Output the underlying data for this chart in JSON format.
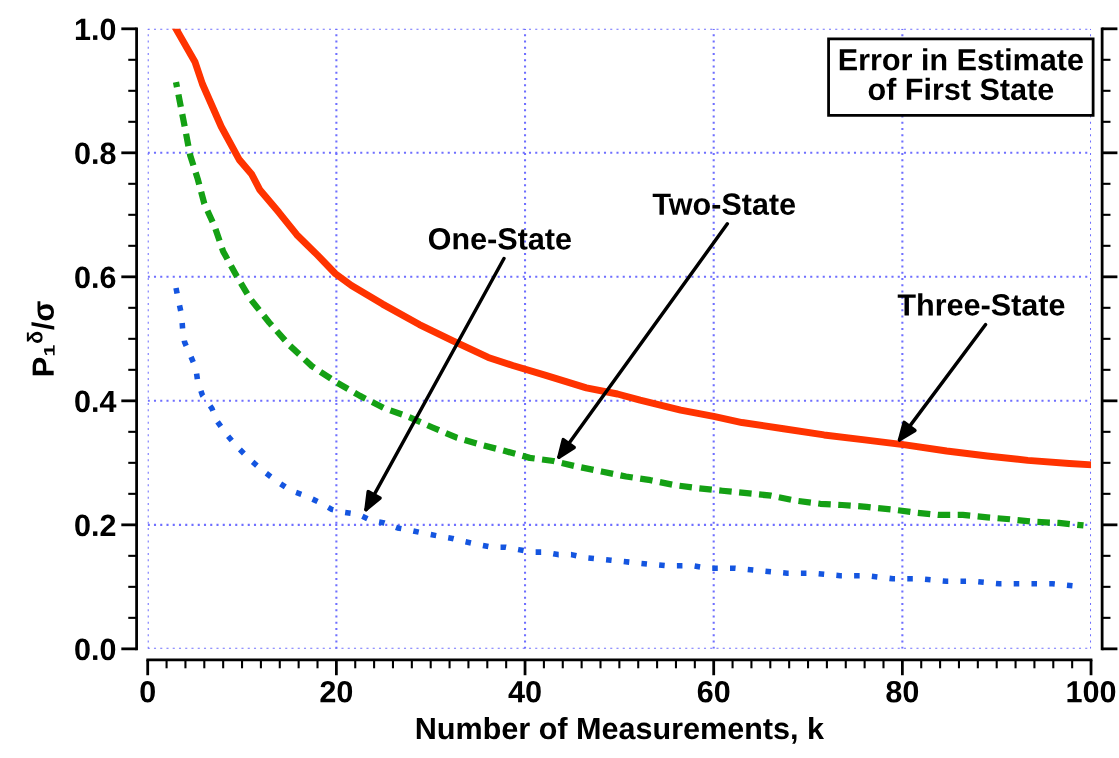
{
  "chart_data": {
    "type": "line",
    "title": "Error in Estimate\nof First State",
    "xlabel": "Number of Measurements, k",
    "ylabel": "P₁$^{δ}$/σ",
    "xlim": [
      0,
      100
    ],
    "ylim": [
      0,
      1.0
    ],
    "xticks": [
      0,
      20,
      40,
      60,
      80,
      100
    ],
    "yticks": [
      {
        "value": 0,
        "label": "0.0"
      },
      0.2,
      0.4,
      0.6,
      0.8,
      {
        "value": 1.0,
        "label": "1.0"
      }
    ],
    "grid": true,
    "marker": "none",
    "series": [
      {
        "color": "#ff3300",
        "line_style": "solid",
        "x": [
          3.0,
          5.0,
          5.8,
          7.8,
          9.7,
          11.0,
          11.9,
          13.9,
          15.8,
          18.0,
          19.9,
          21.6,
          24.9,
          28.8,
          32.3,
          36.1,
          38.7,
          42.2,
          46.5,
          49.8,
          52.2,
          56.5,
          60.0,
          63.0,
          67.4,
          71.7,
          76.0,
          80.3,
          84.7,
          89.0,
          93.3,
          97.7,
          99.8
        ],
        "values": [
          1.0,
          0.947,
          0.911,
          0.842,
          0.789,
          0.766,
          0.74,
          0.704,
          0.668,
          0.635,
          0.605,
          0.586,
          0.556,
          0.523,
          0.497,
          0.47,
          0.457,
          0.441,
          0.421,
          0.411,
          0.401,
          0.385,
          0.375,
          0.365,
          0.355,
          0.345,
          0.337,
          0.329,
          0.319,
          0.311,
          0.304,
          0.299,
          0.297
        ]
      },
      {
        "color": "#14a014",
        "line_style": "dashed",
        "x": [
          3.0,
          3.5,
          4.0,
          4.5,
          5.3,
          6.0,
          7.1,
          8.0,
          9.4,
          10.9,
          12.9,
          15.0,
          17.4,
          20.0,
          22.5,
          25.1,
          27.5,
          30.2,
          32.7,
          35.4,
          37.9,
          40.5,
          43.0,
          45.5,
          48.1,
          50.7,
          53.3,
          55.9,
          58.4,
          60.9,
          63.5,
          66.1,
          68.7,
          71.3,
          73.6,
          76.2,
          78.8,
          81.3,
          83.8,
          86.4,
          89.0,
          91.4,
          94.0,
          96.6,
          99.2
        ],
        "values": [
          0.914,
          0.875,
          0.836,
          0.796,
          0.758,
          0.718,
          0.681,
          0.641,
          0.602,
          0.564,
          0.526,
          0.49,
          0.456,
          0.43,
          0.408,
          0.388,
          0.375,
          0.357,
          0.341,
          0.329,
          0.319,
          0.308,
          0.303,
          0.294,
          0.286,
          0.278,
          0.272,
          0.264,
          0.259,
          0.255,
          0.251,
          0.247,
          0.239,
          0.234,
          0.232,
          0.229,
          0.225,
          0.22,
          0.216,
          0.216,
          0.212,
          0.209,
          0.205,
          0.203,
          0.199
        ]
      },
      {
        "color": "#1455e0",
        "line_style": "dotted",
        "x": [
          3.0,
          3.3,
          3.6,
          3.7,
          3.9,
          4.5,
          5.1,
          5.3,
          5.8,
          6.8,
          7.4,
          8.4,
          9.6,
          11.0,
          12.4,
          13.9,
          15.2,
          16.7,
          18.1,
          19.5,
          20.9,
          22.3,
          23.7,
          25.1,
          26.5,
          27.9,
          29.4,
          30.8,
          32.3,
          33.6,
          35.1,
          36.5,
          37.9,
          39.3,
          40.7,
          42.1,
          43.5,
          44.9,
          46.4,
          49.1,
          52.2,
          55.0,
          57.8,
          59.4,
          62.2,
          65.0,
          67.8,
          70.6,
          73.4,
          76.2,
          79.0,
          81.8,
          84.7,
          87.5,
          90.3,
          93.1,
          95.9,
          98.5
        ],
        "values": [
          0.582,
          0.559,
          0.538,
          0.516,
          0.495,
          0.474,
          0.453,
          0.431,
          0.409,
          0.388,
          0.366,
          0.345,
          0.324,
          0.303,
          0.285,
          0.268,
          0.255,
          0.247,
          0.237,
          0.225,
          0.22,
          0.217,
          0.207,
          0.203,
          0.195,
          0.191,
          0.186,
          0.182,
          0.178,
          0.173,
          0.168,
          0.164,
          0.164,
          0.16,
          0.156,
          0.156,
          0.152,
          0.152,
          0.147,
          0.143,
          0.138,
          0.134,
          0.134,
          0.13,
          0.13,
          0.126,
          0.122,
          0.122,
          0.118,
          0.118,
          0.113,
          0.113,
          0.109,
          0.109,
          0.105,
          0.105,
          0.105,
          0.101
        ]
      }
    ],
    "annotations": [
      {
        "text": "One-State",
        "x": 22.9,
        "y": 0.218
      },
      {
        "text": "Two-State",
        "x": 43.3,
        "y": 0.303
      },
      {
        "text": "Three-State",
        "x": 79.4,
        "y": 0.331
      }
    ]
  }
}
